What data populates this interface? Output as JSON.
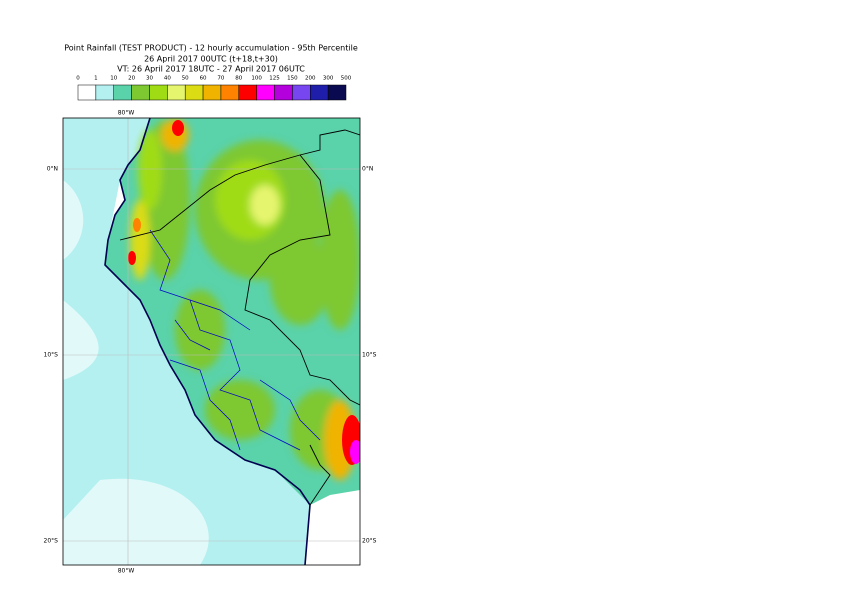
{
  "header": {
    "title": "Point Rainfall (TEST PRODUCT) - 12 hourly accumulation - 95th Percentile",
    "run": "26 April 2017 00UTC (t+18,t+30)",
    "valid": "VT: 26 April 2017 18UTC - 27 April 2017 06UTC"
  },
  "legend": {
    "labels": [
      "0",
      "1",
      "10",
      "20",
      "30",
      "40",
      "50",
      "60",
      "70",
      "80",
      "100",
      "125",
      "150",
      "200",
      "300",
      "500"
    ],
    "colors": [
      "#ffffff",
      "#b4f0f0",
      "#5ad2aa",
      "#7ec832",
      "#a0dc14",
      "#e6f56e",
      "#dcdc14",
      "#f0b400",
      "#ff8200",
      "#ff0000",
      "#ff00ff",
      "#b400dc",
      "#7846f0",
      "#1e1eaa",
      "#0a0a50"
    ]
  },
  "map": {
    "lon_labels_top": [
      "80°W"
    ],
    "lon_labels_bottom": [
      "80°W"
    ],
    "lat_labels_left": [
      "0°N",
      "10°S",
      "20°S"
    ],
    "lat_labels_right": [
      "0°N",
      "10°S",
      "20°S"
    ]
  }
}
